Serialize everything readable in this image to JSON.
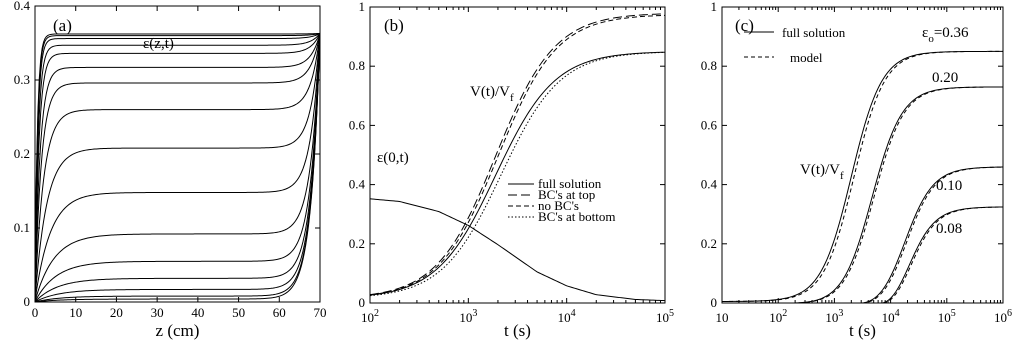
{
  "chart_data": [
    {
      "panel": "(a)",
      "type": "line",
      "xlabel": "z  (cm)",
      "ylabel": "",
      "annotation": "ε(z,t)",
      "xlim": [
        0,
        70
      ],
      "ylim": [
        0,
        0.4
      ],
      "xticks": [
        "0",
        "10",
        "20",
        "30",
        "40",
        "50",
        "60",
        "70"
      ],
      "yticks": [
        "0",
        "0.1",
        "0.2",
        "0.3",
        "0.4"
      ],
      "series": [
        {
          "plateau": 0.3622
        },
        {
          "plateau": 0.36
        },
        {
          "plateau": 0.356
        },
        {
          "plateau": 0.347
        },
        {
          "plateau": 0.336
        },
        {
          "plateau": 0.317
        },
        {
          "plateau": 0.296
        },
        {
          "plateau": 0.26
        },
        {
          "plateau": 0.208
        },
        {
          "plateau": 0.148
        },
        {
          "plateau": 0.092
        },
        {
          "plateau": 0.055
        },
        {
          "plateau": 0.032
        },
        {
          "plateau": 0.017
        },
        {
          "plateau": 0.008
        },
        {
          "plateau": 0.004
        }
      ]
    },
    {
      "panel": "(b)",
      "type": "line",
      "xlabel": "t  (s)",
      "ylabel": "",
      "xscale": "log",
      "xlim": [
        100,
        100000
      ],
      "ylim": [
        0,
        1
      ],
      "xticks": [
        {
          "base": "10",
          "exp": "2"
        },
        {
          "base": "10",
          "exp": "3"
        },
        {
          "base": "10",
          "exp": "4"
        },
        {
          "base": "10",
          "exp": "5"
        }
      ],
      "yticks": [
        "0",
        "0.2",
        "0.4",
        "0.6",
        "0.8",
        "1"
      ],
      "annotations": [
        {
          "text": "V(t)/V",
          "sub": "f"
        },
        {
          "text": "ε(0,t)",
          "sub": ""
        }
      ],
      "legend": [
        "full solution",
        "BC's at top",
        "no BC's",
        "BC's at bottom"
      ],
      "legend_position": "lower-right",
      "series": [
        {
          "name": "full solution",
          "style": "solid",
          "final": 0.85,
          "mid": 1900
        },
        {
          "name": "BC's at top",
          "style": "longdash",
          "final": 0.98,
          "mid": 1900
        },
        {
          "name": "no BC's",
          "style": "dash",
          "final": 0.975,
          "mid": 2000
        },
        {
          "name": "BC's at bottom",
          "style": "dot",
          "final": 0.85,
          "mid": 2150
        },
        {
          "name": "ε(0,t)",
          "style": "solid",
          "points": [
            [
              100,
              0.352
            ],
            [
              200,
              0.343
            ],
            [
              500,
              0.309
            ],
            [
              1000,
              0.262
            ],
            [
              2000,
              0.197
            ],
            [
              5000,
              0.105
            ],
            [
              10000,
              0.058
            ],
            [
              20000,
              0.028
            ],
            [
              50000,
              0.012
            ],
            [
              100000,
              0.008
            ]
          ]
        }
      ]
    },
    {
      "panel": "(c)",
      "type": "line",
      "xlabel": "t  (s)",
      "ylabel": "",
      "xscale": "log",
      "xlim": [
        10,
        1000000
      ],
      "ylim": [
        0,
        1
      ],
      "xticks": [
        {
          "base": "10",
          "exp": ""
        },
        {
          "base": "10",
          "exp": "2"
        },
        {
          "base": "10",
          "exp": "3"
        },
        {
          "base": "10",
          "exp": "4"
        },
        {
          "base": "10",
          "exp": "5"
        },
        {
          "base": "10",
          "exp": "6"
        }
      ],
      "yticks": [
        "0",
        "0.2",
        "0.4",
        "0.6",
        "0.8",
        "1"
      ],
      "annotations": [
        {
          "text": "ε",
          "sub": "o",
          "suffix": "=0.36"
        },
        {
          "text": "0.20"
        },
        {
          "text": "0.10"
        },
        {
          "text": "0.08"
        },
        {
          "text": "V(t)/V",
          "sub": "f"
        }
      ],
      "legend": [
        "full solution",
        "model"
      ],
      "legend_position": "top-left",
      "series": [
        {
          "eps0": 0.36,
          "final": 0.85,
          "t0": 0,
          "mid": 2000
        },
        {
          "eps0": 0.2,
          "final": 0.73,
          "t0": 170,
          "mid": 4800
        },
        {
          "eps0": 0.1,
          "final": 0.46,
          "t0": 3000,
          "mid": 20000
        },
        {
          "eps0": 0.08,
          "final": 0.325,
          "t0": 7000,
          "mid": 26000
        }
      ]
    }
  ]
}
